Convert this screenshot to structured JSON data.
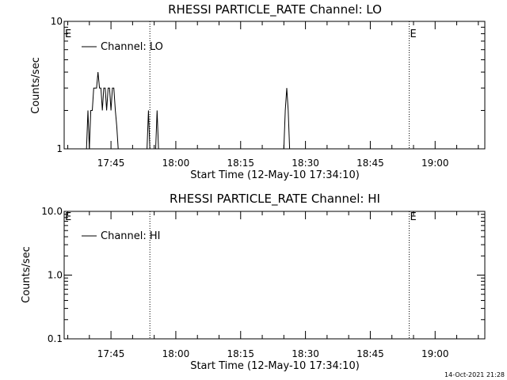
{
  "footer_timestamp": "14-Oct-2021 21:28",
  "chart_data": [
    {
      "type": "line",
      "title": "RHESSI PARTICLE_RATE Channel: LO",
      "xlabel": "Start Time (12-May-10 17:34:10)",
      "ylabel": "Counts/sec",
      "yscale": "log",
      "ylim": [
        1,
        10
      ],
      "ytick_labels": [
        "1",
        "10"
      ],
      "ytick_values": [
        1,
        10
      ],
      "xlim": [
        "17:34:10",
        "19:11:30"
      ],
      "xtick_labels": [
        "17:45",
        "18:00",
        "18:15",
        "18:30",
        "18:45",
        "19:00"
      ],
      "xtick_values": [
        "17:45",
        "18:00",
        "18:15",
        "18:30",
        "18:45",
        "19:00"
      ],
      "event_marker_times": [
        "17:34:10",
        "17:54:00",
        "18:54:00",
        "19:11:30"
      ],
      "event_marker_label": "E",
      "event_marker_label_times": [
        "17:34:10",
        "18:54:00"
      ],
      "series": [
        {
          "name": "Channel: LO",
          "x": [
            "17:39:00",
            "17:39:20",
            "17:39:40",
            "17:40:00",
            "17:40:20",
            "17:40:40",
            "17:41:00",
            "17:41:20",
            "17:41:40",
            "17:42:00",
            "17:42:20",
            "17:42:40",
            "17:43:00",
            "17:43:20",
            "17:43:40",
            "17:44:00",
            "17:44:20",
            "17:44:40",
            "17:45:00",
            "17:45:20",
            "17:45:40",
            "17:46:00",
            "17:46:20",
            "17:46:40",
            "17:47:00",
            "17:47:20",
            "17:47:40",
            "17:48:00",
            "17:48:20",
            "17:48:40",
            "17:49:00",
            "17:53:00",
            "17:53:20",
            "17:53:40",
            "17:54:00",
            "17:55:00",
            "17:55:20",
            "17:55:40",
            "17:56:00",
            "17:56:20",
            "18:25:00",
            "18:25:20",
            "18:25:40",
            "18:26:00",
            "18:26:20"
          ],
          "y": [
            1,
            1,
            2,
            1,
            2,
            2,
            3,
            3,
            3,
            4,
            3,
            3,
            2,
            3,
            3,
            2,
            3,
            3,
            2,
            3,
            3,
            2,
            1.5,
            1,
            1,
            1,
            1,
            1,
            1,
            1,
            1,
            1,
            1,
            2,
            1,
            1,
            1,
            2,
            1,
            1,
            1,
            2,
            3,
            2,
            1
          ]
        }
      ]
    },
    {
      "type": "line",
      "title": "RHESSI PARTICLE_RATE Channel: HI",
      "xlabel": "Start Time (12-May-10 17:34:10)",
      "ylabel": "Counts/sec",
      "yscale": "log",
      "ylim": [
        0.1,
        10
      ],
      "ytick_labels": [
        "0.1",
        "1.0",
        "10.0"
      ],
      "ytick_values": [
        0.1,
        1,
        10
      ],
      "xlim": [
        "17:34:10",
        "19:11:30"
      ],
      "xtick_labels": [
        "17:45",
        "18:00",
        "18:15",
        "18:30",
        "18:45",
        "19:00"
      ],
      "xtick_values": [
        "17:45",
        "18:00",
        "18:15",
        "18:30",
        "18:45",
        "19:00"
      ],
      "event_marker_times": [
        "17:34:10",
        "17:54:00",
        "18:54:00",
        "19:11:30"
      ],
      "event_marker_label": "E",
      "event_marker_label_times": [
        "17:34:10",
        "18:54:00"
      ],
      "series": [
        {
          "name": "Channel: HI",
          "x": [],
          "y": []
        }
      ]
    }
  ]
}
